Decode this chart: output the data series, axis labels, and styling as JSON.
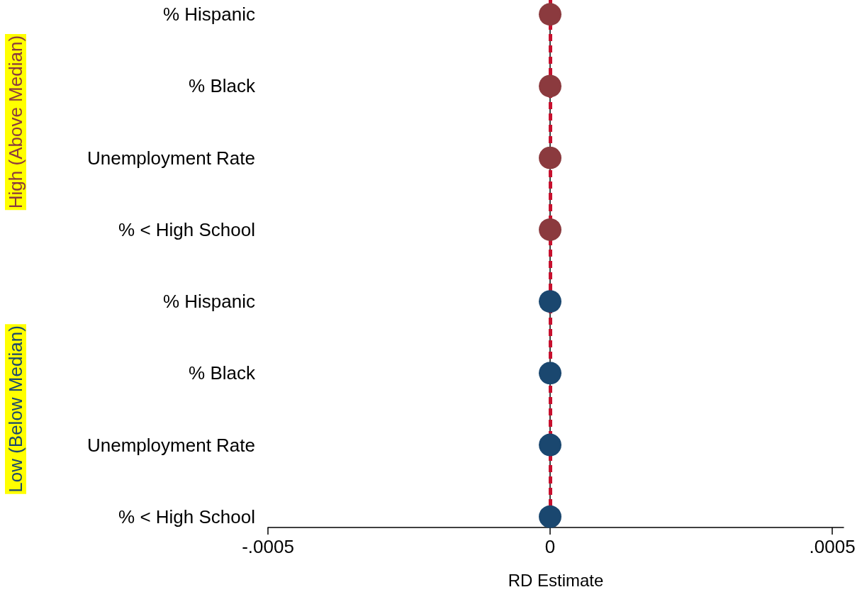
{
  "chart_data": {
    "type": "scatter",
    "orientation": "horizontal",
    "xlabel": "RD Estimate",
    "categories": [
      "% Hispanic",
      "% Black",
      "Unemployment Rate",
      "% < High School",
      "% Hispanic",
      "% Black",
      "Unemployment Rate",
      "% < High School"
    ],
    "series": [
      {
        "name": "High (Above Median)",
        "color": "#8b3a3e",
        "values": [
          0,
          0,
          0,
          0,
          null,
          null,
          null,
          null
        ]
      },
      {
        "name": "Low (Below Median)",
        "color": "#1a476f",
        "values": [
          null,
          null,
          null,
          null,
          0,
          0,
          0,
          0
        ]
      }
    ],
    "xlim": [
      -0.0005,
      0.00052
    ],
    "xticks": [
      {
        "value": -0.0005,
        "label": "-.0005"
      },
      0,
      {
        "value": 0.0005,
        "label": ".0005"
      }
    ],
    "ref_lines": [
      {
        "axis": "x",
        "value": 0,
        "color": "#c8102e",
        "line_style": "dashed"
      }
    ],
    "grid": false,
    "legend": false,
    "marker": "circle"
  }
}
